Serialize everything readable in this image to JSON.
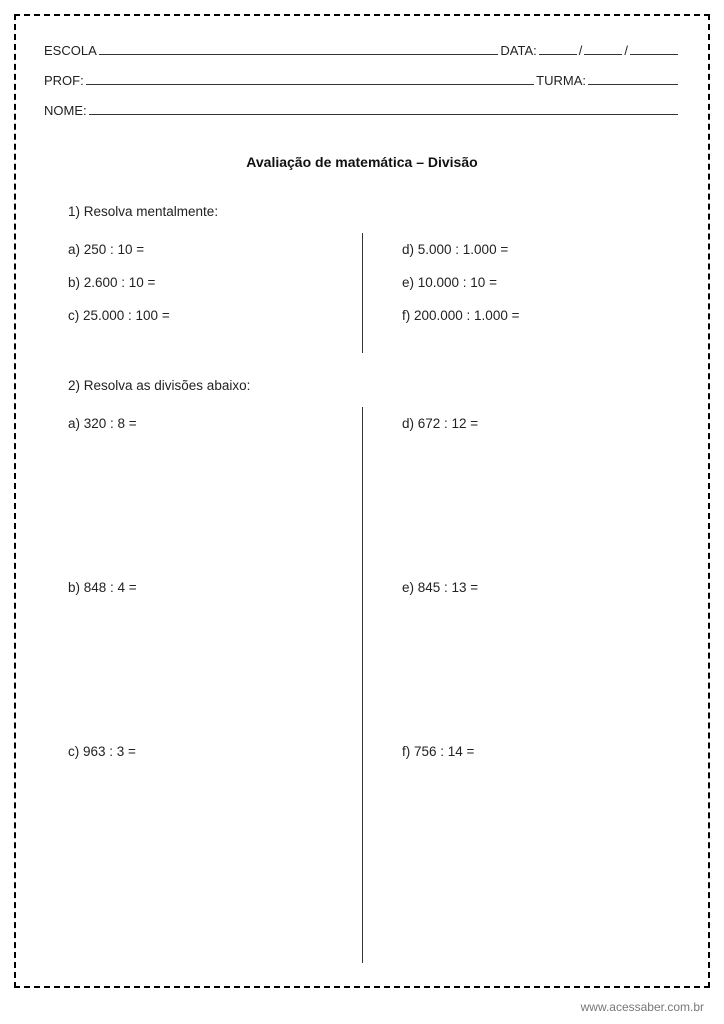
{
  "header": {
    "escola_label": "ESCOLA",
    "data_label": "DATA:",
    "prof_label": "PROF:",
    "turma_label": "TURMA:",
    "nome_label": "NOME:",
    "slash": "/"
  },
  "title": "Avaliação de matemática – Divisão",
  "q1": {
    "prompt": "1)  Resolva mentalmente:",
    "left": {
      "a": "a)  250 : 10 =",
      "b": "b)  2.600 : 10 =",
      "c": "c)  25.000 : 100 ="
    },
    "right": {
      "d": "d)  5.000 : 1.000 =",
      "e": "e)  10.000 : 10 =",
      "f": "f)   200.000 : 1.000 ="
    }
  },
  "q2": {
    "prompt": "2)  Resolva as divisões abaixo:",
    "left": {
      "a": "a)  320 : 8 =",
      "b": "b)  848 : 4 =",
      "c": "c)  963 : 3 ="
    },
    "right": {
      "d": "d)  672 : 12 =",
      "e": "e)  845 : 13 =",
      "f": "f)   756 : 14 ="
    }
  },
  "footer": "www.acessaber.com.br"
}
